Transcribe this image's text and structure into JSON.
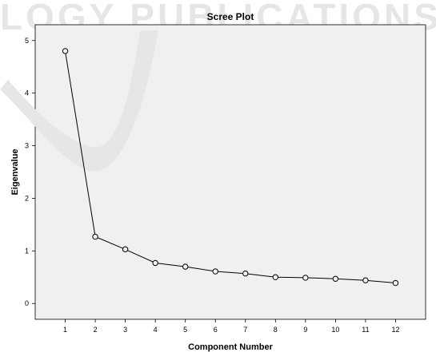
{
  "watermark": "LOGY PUBLICATIONS",
  "chart_data": {
    "type": "line",
    "title": "Scree Plot",
    "xlabel": "Component Number",
    "ylabel": "Eigenvalue",
    "x": [
      1,
      2,
      3,
      4,
      5,
      6,
      7,
      8,
      9,
      10,
      11,
      12
    ],
    "values": [
      4.8,
      1.27,
      1.03,
      0.77,
      0.7,
      0.61,
      0.57,
      0.5,
      0.49,
      0.47,
      0.44,
      0.39
    ],
    "x_ticks": [
      "1",
      "2",
      "3",
      "4",
      "5",
      "6",
      "7",
      "8",
      "9",
      "10",
      "11",
      "12"
    ],
    "y_ticks": [
      0,
      1,
      2,
      3,
      4,
      5
    ],
    "xlim": [
      0,
      13
    ],
    "ylim": [
      -0.3,
      5.3
    ],
    "grid": false,
    "marker": "open-circle",
    "colors": {
      "plot_background": "#f0f0f0",
      "line": "#000000",
      "marker_fill": "#f0f0f0",
      "watermark": "#e6e6e6"
    },
    "watermark_logo": "stylized-v-swoosh"
  }
}
